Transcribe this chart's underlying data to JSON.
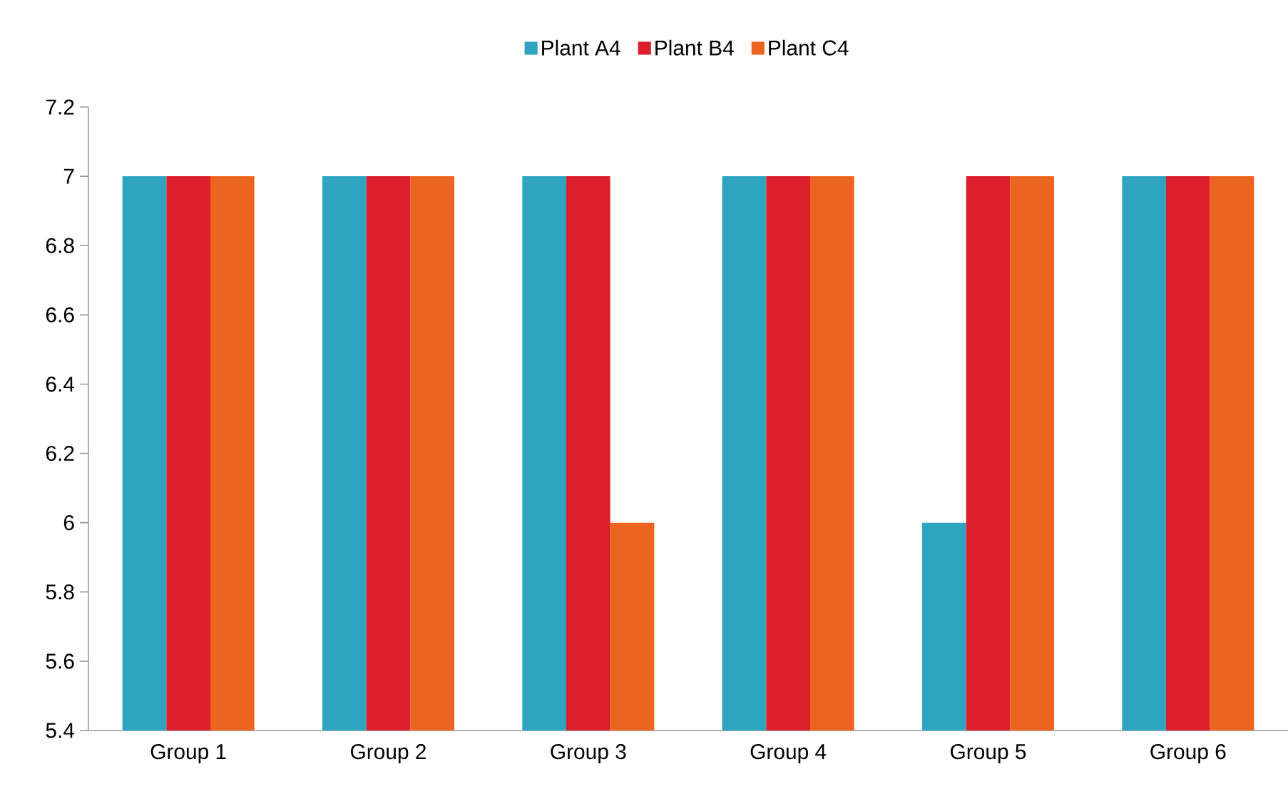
{
  "chart_data": {
    "type": "bar",
    "categories": [
      "Group 1",
      "Group 2",
      "Group 3",
      "Group 4",
      "Group 5",
      "Group 6"
    ],
    "series": [
      {
        "name": "Plant A4",
        "color": "#2ea4c0",
        "values": [
          7,
          7,
          7,
          7,
          6,
          7
        ]
      },
      {
        "name": "Plant B4",
        "color": "#dc1f2b",
        "values": [
          7,
          7,
          7,
          7,
          7,
          7
        ]
      },
      {
        "name": "Plant C4",
        "color": "#ec6520",
        "values": [
          7,
          7,
          6,
          7,
          7,
          7
        ]
      }
    ],
    "ylim": [
      5.4,
      7.2
    ],
    "yticks": [
      5.4,
      5.6,
      5.8,
      6,
      6.2,
      6.4,
      6.6,
      6.8,
      7,
      7.2
    ],
    "grid": false,
    "legend": "top"
  }
}
